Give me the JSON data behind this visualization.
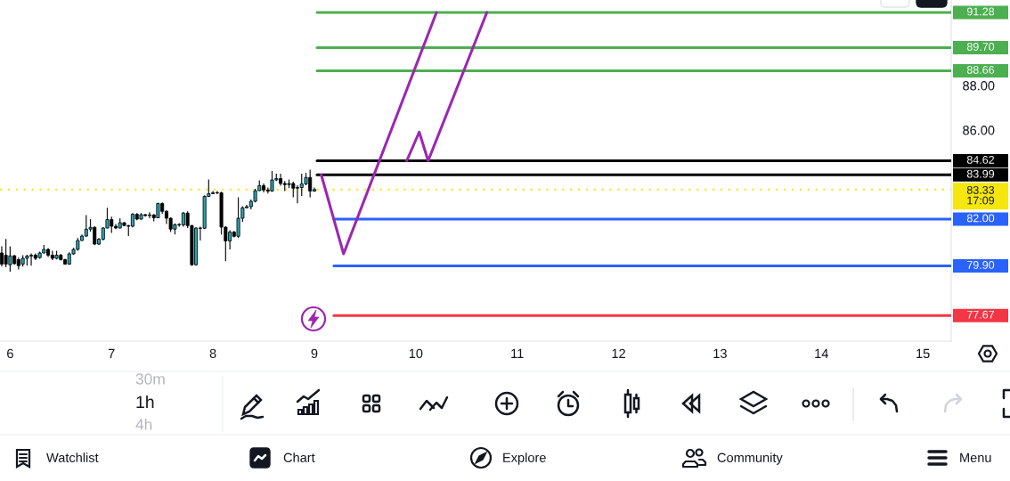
{
  "chart_data": {
    "type": "candlestick",
    "x": [
      5.917,
      5.958,
      6.0,
      6.042,
      6.083,
      6.125,
      6.167,
      6.208,
      6.25,
      6.292,
      6.333,
      6.375,
      6.417,
      6.458,
      6.5,
      6.542,
      6.583,
      6.625,
      6.667,
      6.708,
      6.75,
      6.792,
      6.833,
      6.875,
      6.917,
      6.958,
      7.0,
      7.042,
      7.083,
      7.125,
      7.167,
      7.208,
      7.25,
      7.292,
      7.333,
      7.375,
      7.417,
      7.458,
      7.5,
      7.542,
      7.583,
      7.625,
      7.667,
      7.708,
      7.75,
      7.792,
      7.833,
      7.875,
      7.917,
      7.958,
      8.0,
      8.042,
      8.083,
      8.125,
      8.167,
      8.208,
      8.25,
      8.292,
      8.333,
      8.375,
      8.417,
      8.458,
      8.5,
      8.542,
      8.583,
      8.625,
      8.667,
      8.708,
      8.75,
      8.792,
      8.833,
      8.875,
      8.917,
      8.958,
      9.0
    ],
    "ohlc": [
      [
        80.48,
        80.78,
        79.87,
        79.98
      ],
      [
        80.38,
        81.11,
        79.84,
        79.98
      ],
      [
        79.95,
        80.78,
        79.64,
        80.35
      ],
      [
        80.35,
        80.4,
        79.95,
        80.0
      ],
      [
        80.18,
        80.27,
        79.74,
        79.91
      ],
      [
        79.98,
        80.38,
        79.87,
        80.24
      ],
      [
        80.24,
        80.4,
        79.91,
        80.34
      ],
      [
        80.34,
        80.46,
        79.91,
        80.38
      ],
      [
        80.38,
        80.46,
        80.16,
        80.24
      ],
      [
        80.27,
        80.54,
        80.22,
        80.48
      ],
      [
        80.48,
        80.84,
        80.46,
        80.64
      ],
      [
        80.64,
        80.7,
        80.3,
        80.38
      ],
      [
        80.38,
        80.58,
        80.16,
        80.24
      ],
      [
        80.24,
        80.58,
        80.19,
        80.38
      ],
      [
        80.38,
        80.44,
        80.14,
        80.18
      ],
      [
        80.18,
        80.22,
        79.95,
        79.98
      ],
      [
        79.98,
        80.51,
        79.95,
        80.44
      ],
      [
        80.44,
        80.71,
        80.4,
        80.64
      ],
      [
        80.64,
        81.15,
        80.58,
        81.04
      ],
      [
        81.04,
        81.31,
        81.02,
        81.24
      ],
      [
        81.24,
        82.18,
        81.2,
        81.55
      ],
      [
        81.55,
        82.0,
        81.44,
        81.63
      ],
      [
        81.63,
        81.68,
        80.84,
        80.88
      ],
      [
        80.88,
        81.15,
        80.84,
        81.1
      ],
      [
        81.1,
        81.64,
        81.04,
        81.6
      ],
      [
        81.6,
        82.51,
        81.58,
        81.98
      ],
      [
        81.98,
        82.11,
        81.38,
        81.68
      ],
      [
        81.68,
        81.78,
        81.55,
        81.6
      ],
      [
        81.6,
        82.04,
        81.58,
        81.84
      ],
      [
        81.84,
        81.87,
        81.68,
        81.71
      ],
      [
        81.71,
        81.74,
        81.24,
        81.68
      ],
      [
        81.68,
        82.27,
        81.63,
        82.22
      ],
      [
        82.22,
        82.27,
        81.95,
        82.0
      ],
      [
        82.0,
        82.27,
        81.98,
        82.2
      ],
      [
        82.2,
        82.24,
        82.11,
        82.16
      ],
      [
        82.16,
        82.31,
        82.04,
        82.19
      ],
      [
        82.19,
        82.22,
        81.9,
        82.06
      ],
      [
        82.06,
        82.74,
        82.04,
        82.7
      ],
      [
        82.7,
        82.75,
        82.24,
        82.35
      ],
      [
        82.35,
        82.4,
        81.78,
        82.04
      ],
      [
        82.04,
        82.08,
        81.42,
        81.55
      ],
      [
        81.55,
        81.8,
        81.31,
        81.76
      ],
      [
        81.76,
        81.82,
        81.66,
        81.74
      ],
      [
        81.74,
        82.32,
        81.66,
        82.27
      ],
      [
        82.27,
        82.35,
        81.6,
        81.71
      ],
      [
        81.71,
        81.74,
        79.9,
        79.95
      ],
      [
        79.95,
        81.63,
        79.91,
        81.6
      ],
      [
        81.6,
        81.66,
        81.04,
        81.59
      ],
      [
        81.59,
        83.07,
        81.55,
        83.02
      ],
      [
        83.02,
        83.78,
        82.99,
        83.14
      ],
      [
        83.14,
        83.26,
        83.12,
        83.19
      ],
      [
        83.19,
        83.26,
        83.12,
        83.18
      ],
      [
        83.18,
        83.23,
        81.31,
        81.64
      ],
      [
        81.64,
        81.68,
        80.11,
        81.02
      ],
      [
        81.02,
        81.5,
        80.64,
        81.42
      ],
      [
        81.42,
        81.47,
        81.18,
        81.23
      ],
      [
        81.23,
        82.98,
        81.15,
        82.04
      ],
      [
        82.04,
        82.58,
        81.87,
        82.51
      ],
      [
        82.51,
        82.64,
        82.48,
        82.56
      ],
      [
        82.56,
        82.88,
        82.44,
        82.8
      ],
      [
        82.8,
        83.36,
        82.75,
        83.28
      ],
      [
        83.28,
        83.74,
        83.26,
        83.5
      ],
      [
        83.5,
        83.6,
        83.2,
        83.31
      ],
      [
        83.31,
        83.42,
        83.15,
        83.26
      ],
      [
        83.26,
        84.16,
        83.23,
        83.76
      ],
      [
        83.76,
        84.04,
        83.71,
        83.82
      ],
      [
        83.82,
        84.04,
        83.5,
        83.6
      ],
      [
        83.6,
        83.71,
        83.26,
        83.55
      ],
      [
        83.55,
        83.78,
        83.39,
        83.6
      ],
      [
        83.6,
        83.68,
        82.98,
        83.39
      ],
      [
        83.39,
        83.52,
        82.71,
        83.42
      ],
      [
        83.42,
        84.04,
        83.04,
        83.58
      ],
      [
        83.58,
        84.08,
        83.52,
        83.87
      ],
      [
        83.87,
        84.22,
        82.98,
        83.26
      ],
      [
        83.26,
        83.42,
        83.23,
        83.33
      ]
    ],
    "colors": [
      "#000000",
      "#000000",
      "#26a5b5",
      "#000000",
      "#000000",
      "#26a5b5",
      "#26a5b5",
      "#26a5b5",
      "#000000",
      "#26a5b5",
      "#26a5b5",
      "#000000",
      "#000000",
      "#26a5b5",
      "#000000",
      "#000000",
      "#26a5b5",
      "#26a5b5",
      "#26a5b5",
      "#26a5b5",
      "#26a5b5",
      "#26a5b5",
      "#000000",
      "#26a5b5",
      "#26a5b5",
      "#26a5b5",
      "#000000",
      "#000000",
      "#26a5b5",
      "#000000",
      "#000000",
      "#26a5b5",
      "#000000",
      "#26a5b5",
      "#000000",
      "#26a5b5",
      "#000000",
      "#26a5b5",
      "#000000",
      "#000000",
      "#000000",
      "#26a5b5",
      "#000000",
      "#26a5b5",
      "#000000",
      "#000000",
      "#26a5b5",
      "#000000",
      "#26a5b5",
      "#26a5b5",
      "#26a5b5",
      "#000000",
      "#000000",
      "#000000",
      "#26a5b5",
      "#000000",
      "#26a5b5",
      "#26a5b5",
      "#26a5b5",
      "#26a5b5",
      "#26a5b5",
      "#26a5b5",
      "#000000",
      "#000000",
      "#26a5b5",
      "#26a5b5",
      "#000000",
      "#000000",
      "#26a5b5",
      "#000000",
      "#26a5b5",
      "#26a5b5",
      "#26a5b5",
      "#000000",
      "#26a5b5"
    ],
    "series": [
      {
        "type": "line",
        "color": "#4caf50",
        "x": [
          9.027,
          15.28
        ],
        "values": [
          91.28,
          91.28
        ],
        "value_labels": [
          null,
          "91.28"
        ]
      },
      {
        "type": "line",
        "color": "#4caf50",
        "x": [
          9.027,
          15.28
        ],
        "values": [
          89.7,
          89.7
        ],
        "value_labels": [
          null,
          "89.70"
        ]
      },
      {
        "type": "line",
        "color": "#4caf50",
        "x": [
          9.027,
          15.28
        ],
        "values": [
          88.66,
          88.66
        ],
        "value_labels": [
          null,
          "88.66"
        ]
      },
      {
        "type": "line",
        "color": "#000000",
        "x": [
          9.027,
          15.28
        ],
        "values": [
          84.62,
          84.62
        ],
        "value_labels": [
          null,
          "84.62"
        ]
      },
      {
        "type": "line",
        "color": "#000000",
        "x": [
          9.027,
          15.28
        ],
        "values": [
          83.99,
          83.99
        ],
        "value_labels": [
          null,
          "83.99"
        ]
      },
      {
        "type": "line",
        "color": "#2962ff",
        "x": [
          9.193,
          15.28
        ],
        "values": [
          82.0,
          82.0
        ],
        "value_labels": [
          null,
          "82.00"
        ]
      },
      {
        "type": "line",
        "color": "#2962ff",
        "x": [
          9.193,
          15.28
        ],
        "values": [
          79.9,
          79.9
        ],
        "value_labels": [
          null,
          "79.90"
        ]
      },
      {
        "type": "line",
        "color": "#f23645",
        "x": [
          9.193,
          15.28
        ],
        "values": [
          77.67,
          77.67
        ],
        "value_labels": [
          null,
          "77.67"
        ]
      },
      {
        "type": "line",
        "color": "#9c27b0",
        "x": [
          9.068,
          9.288,
          10.204
        ],
        "values": [
          83.99,
          80.44,
          91.28
        ]
      },
      {
        "type": "line",
        "color": "#9c27b0",
        "x": [
          9.911,
          10.034,
          10.122,
          10.701
        ],
        "values": [
          84.62,
          85.91,
          84.62,
          91.28
        ]
      }
    ],
    "ref_lines": [
      {
        "axis": "y",
        "value": 83.33,
        "label": "83.33\n17:09",
        "color": "#f5e60d",
        "line_style": "dotted"
      }
    ],
    "xlim": [
      5.9,
      15.28
    ],
    "ylim": [
      76.52,
      91.84
    ],
    "xticks": [
      6,
      7,
      8,
      9,
      10,
      11,
      12,
      13,
      14,
      15
    ],
    "yticks": [
      {
        "value": 86,
        "label": "86.00"
      },
      {
        "value": 88,
        "label": "88.00"
      }
    ],
    "annotations": [
      "30m",
      "1h",
      "4h",
      "Watchlist",
      "Chart",
      "Explore",
      "Community",
      "Menu"
    ]
  }
}
